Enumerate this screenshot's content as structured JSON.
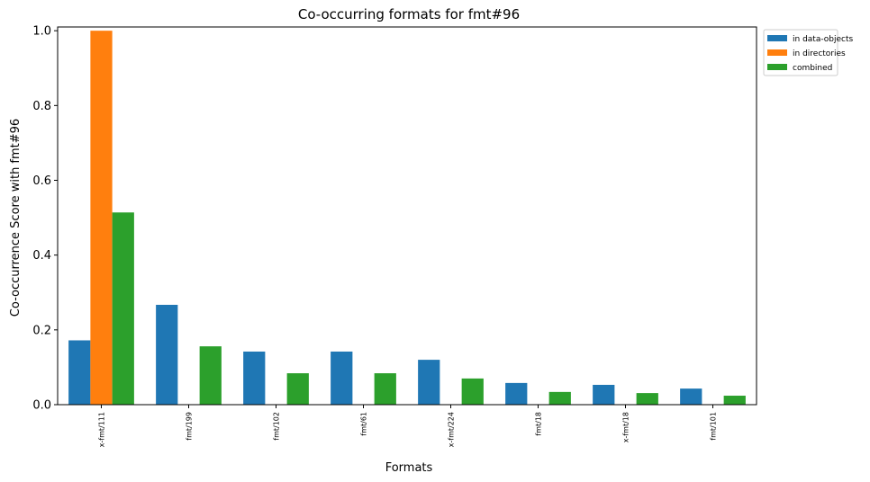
{
  "chart_data": {
    "type": "bar",
    "title": "Co-occurring formats for fmt#96",
    "xlabel": "Formats",
    "ylabel": "Co-occurrence Score with fmt#96",
    "categories": [
      "x-fmt/111",
      "fmt/199",
      "fmt/102",
      "fmt/61",
      "x-fmt/224",
      "fmt/18",
      "x-fmt/18",
      "fmt/101"
    ],
    "series": [
      {
        "name": "in data-objects",
        "color": "#1f77b4",
        "values": [
          0.172,
          0.267,
          0.142,
          0.142,
          0.12,
          0.058,
          0.053,
          0.043
        ]
      },
      {
        "name": "in directories",
        "color": "#ff7f0e",
        "values": [
          1.0,
          0,
          0,
          0,
          0,
          0,
          0,
          0
        ]
      },
      {
        "name": "combined",
        "color": "#2ca02c",
        "values": [
          0.514,
          0.156,
          0.084,
          0.084,
          0.07,
          0.034,
          0.031,
          0.024
        ]
      }
    ],
    "ylim": [
      0,
      1.01
    ],
    "yticks": [
      "0.0",
      "0.2",
      "0.4",
      "0.6",
      "0.8",
      "1.0"
    ],
    "grid": false,
    "legend_position": "outside-top-right"
  }
}
